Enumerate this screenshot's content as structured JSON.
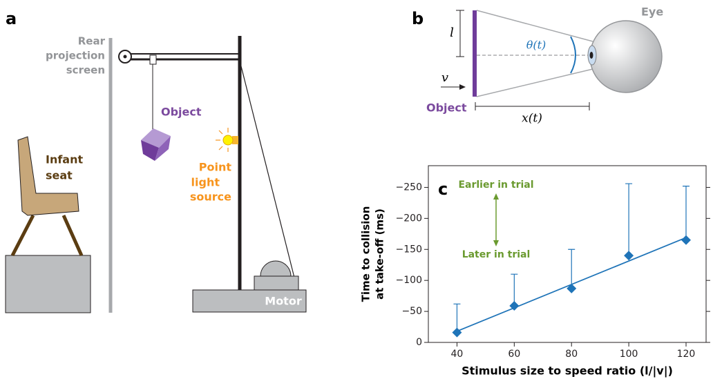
{
  "panel_a": {
    "label": "a",
    "screen_label": [
      "Rear",
      "projection",
      "screen"
    ],
    "object_label": "Object",
    "seat_label": [
      "Infant",
      "seat"
    ],
    "light_label": [
      "Point",
      "light",
      "source"
    ],
    "motor_label": "Motor"
  },
  "panel_b": {
    "label": "b",
    "size_label": "l",
    "speed_label": "v",
    "angle_label": "θ(t)",
    "eye_label": "Eye",
    "object_label": "Object",
    "distance_label": "x(t)"
  },
  "chart_data": {
    "type": "scatter",
    "panel_label": "c",
    "x_label": "Stimulus size to speed ratio (l/|v|)",
    "y_label": [
      "Time to collision",
      "at take-off (ms)"
    ],
    "annotations": [
      "Earlier in trial",
      "Later in trial"
    ],
    "x": [
      40,
      60,
      80,
      100,
      120
    ],
    "series": [
      {
        "color": "#1f74b8",
        "values": [
          -16,
          -59,
          -87,
          -140,
          -165
        ],
        "errors": [
          46,
          51,
          63,
          116,
          87
        ]
      }
    ],
    "fit_line": {
      "x": [
        40,
        120
      ],
      "values": [
        -18,
        -169
      ]
    },
    "xlim": [
      30,
      127
    ],
    "xticks": [
      40,
      60,
      80,
      100,
      120
    ],
    "ylim": [
      0,
      -285
    ],
    "yticks": [
      0,
      {
        "value": -50,
        "label": "−50"
      },
      {
        "value": -100,
        "label": "−100"
      },
      {
        "value": -150,
        "label": "−150"
      },
      {
        "value": -200,
        "label": "−200"
      },
      {
        "value": -250,
        "label": "−250"
      }
    ]
  }
}
